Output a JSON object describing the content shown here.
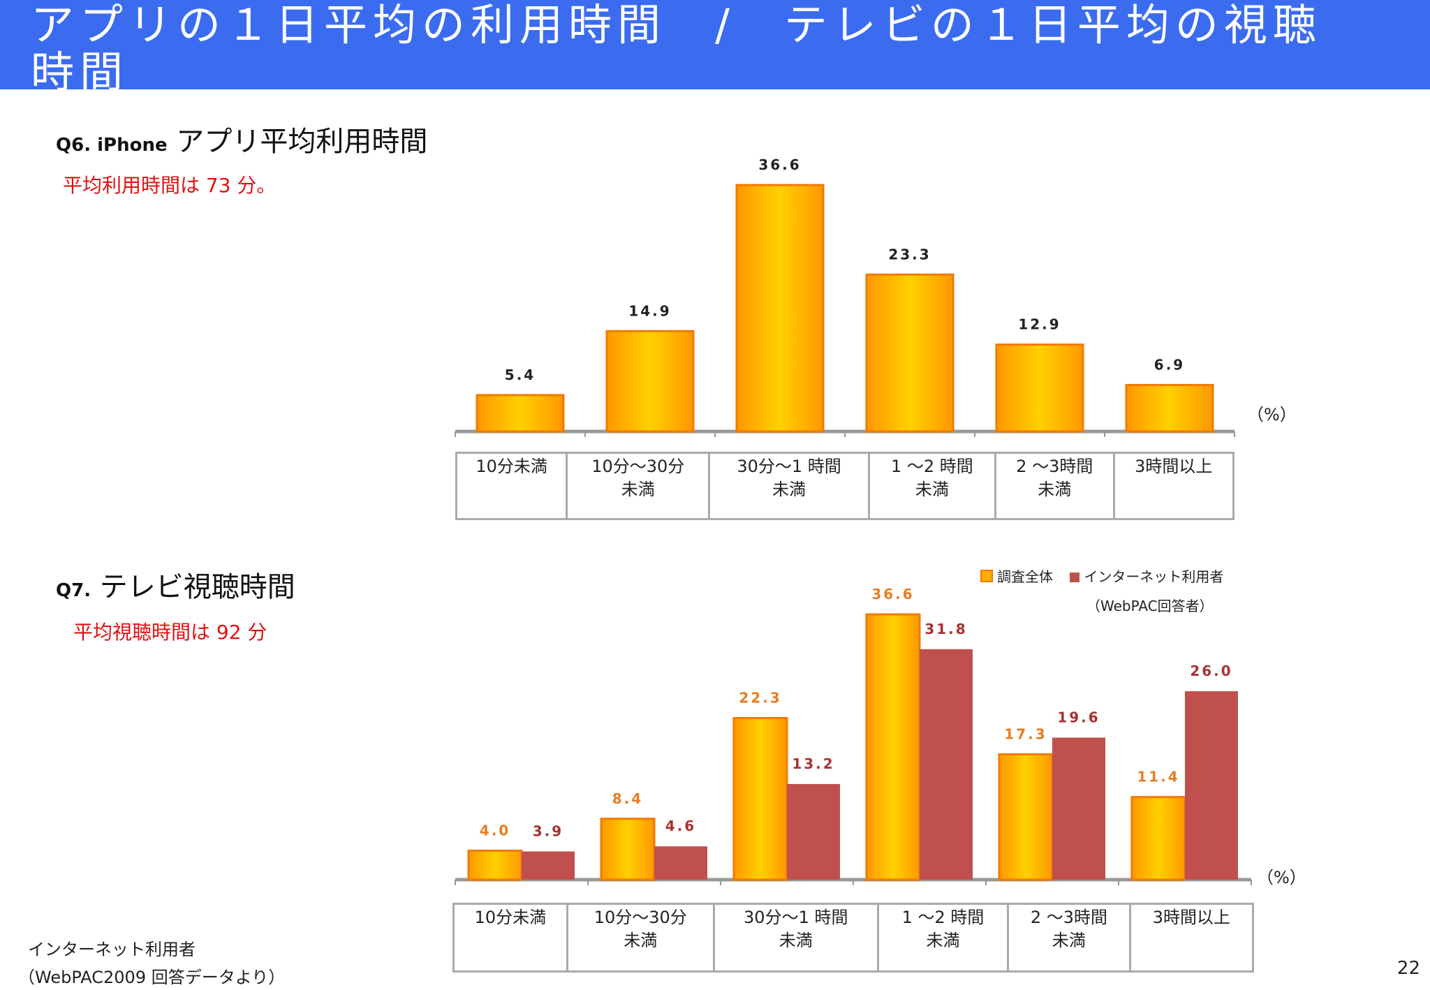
{
  "slide": {
    "title": "アプリの１日平均の利用時間　/　テレビの１日平均の視聴時間",
    "page_number": "22",
    "footer_line1": "インターネット利用者",
    "footer_line2": "（WebPAC2009 回答データより）"
  },
  "q6": {
    "code": "Q6. iPhone",
    "title": "アプリ平均利用時間",
    "note": "平均利用時間は 73 分。",
    "unit": "（%）"
  },
  "q7": {
    "code": "Q7.",
    "title": "テレビ視聴時間",
    "note": "平均視聴時間は 92 分",
    "unit": "（%）"
  },
  "colors": {
    "orange": "#ffb000",
    "orange_border": "#f07a00",
    "red": "#c0504d",
    "orange_label": "#e67e22",
    "red_label": "#a83232"
  },
  "chart_data": [
    {
      "type": "bar",
      "title": "アプリ平均利用時間",
      "categories": [
        "10分未満",
        "10分～30分未満",
        "30分～1時間未満",
        "1～2時間未満",
        "2～3時間未満",
        "3時間以上"
      ],
      "category_lines": [
        [
          "10分未満"
        ],
        [
          "10分～30分",
          "未満"
        ],
        [
          "30分～1 時間",
          "未満"
        ],
        [
          "1 ～2 時間",
          "未満"
        ],
        [
          "2 ～3時間",
          "未満"
        ],
        [
          "3時間以上"
        ]
      ],
      "values": [
        5.4,
        14.9,
        36.6,
        23.3,
        12.9,
        6.9
      ],
      "value_labels": [
        "5.4",
        "14.9",
        "36.6",
        "23.3",
        "12.9",
        "6.9"
      ],
      "ylim": [
        0,
        36.6
      ],
      "unit": "%"
    },
    {
      "type": "bar",
      "title": "テレビ視聴時間",
      "categories": [
        "10分未満",
        "10分～30分未満",
        "30分～1時間未満",
        "1～2時間未満",
        "2～3時間未満",
        "3時間以上"
      ],
      "category_lines": [
        [
          "10分未満"
        ],
        [
          "10分～30分",
          "未満"
        ],
        [
          "30分～1 時間",
          "未満"
        ],
        [
          "1 ～2 時間",
          "未満"
        ],
        [
          "2 ～3時間",
          "未満"
        ],
        [
          "3時間以上"
        ]
      ],
      "series": [
        {
          "name": "調査全体",
          "values": [
            4.0,
            8.4,
            22.3,
            36.6,
            17.3,
            11.4
          ],
          "value_labels": [
            "4.0",
            "8.4",
            "22.3",
            "36.6",
            "17.3",
            "11.4"
          ]
        },
        {
          "name": "インターネット利用者（WebPAC回答者）",
          "values": [
            3.9,
            4.6,
            13.2,
            31.8,
            19.6,
            26.0
          ],
          "value_labels": [
            "3.9",
            "4.6",
            "13.2",
            "31.8",
            "19.6",
            "26.0"
          ]
        }
      ],
      "legend": [
        "調査全体",
        "インターネット利用者",
        "（WebPAC回答者）"
      ],
      "ylim": [
        0,
        36.6
      ],
      "unit": "%",
      "legend_position": "top-right"
    }
  ]
}
